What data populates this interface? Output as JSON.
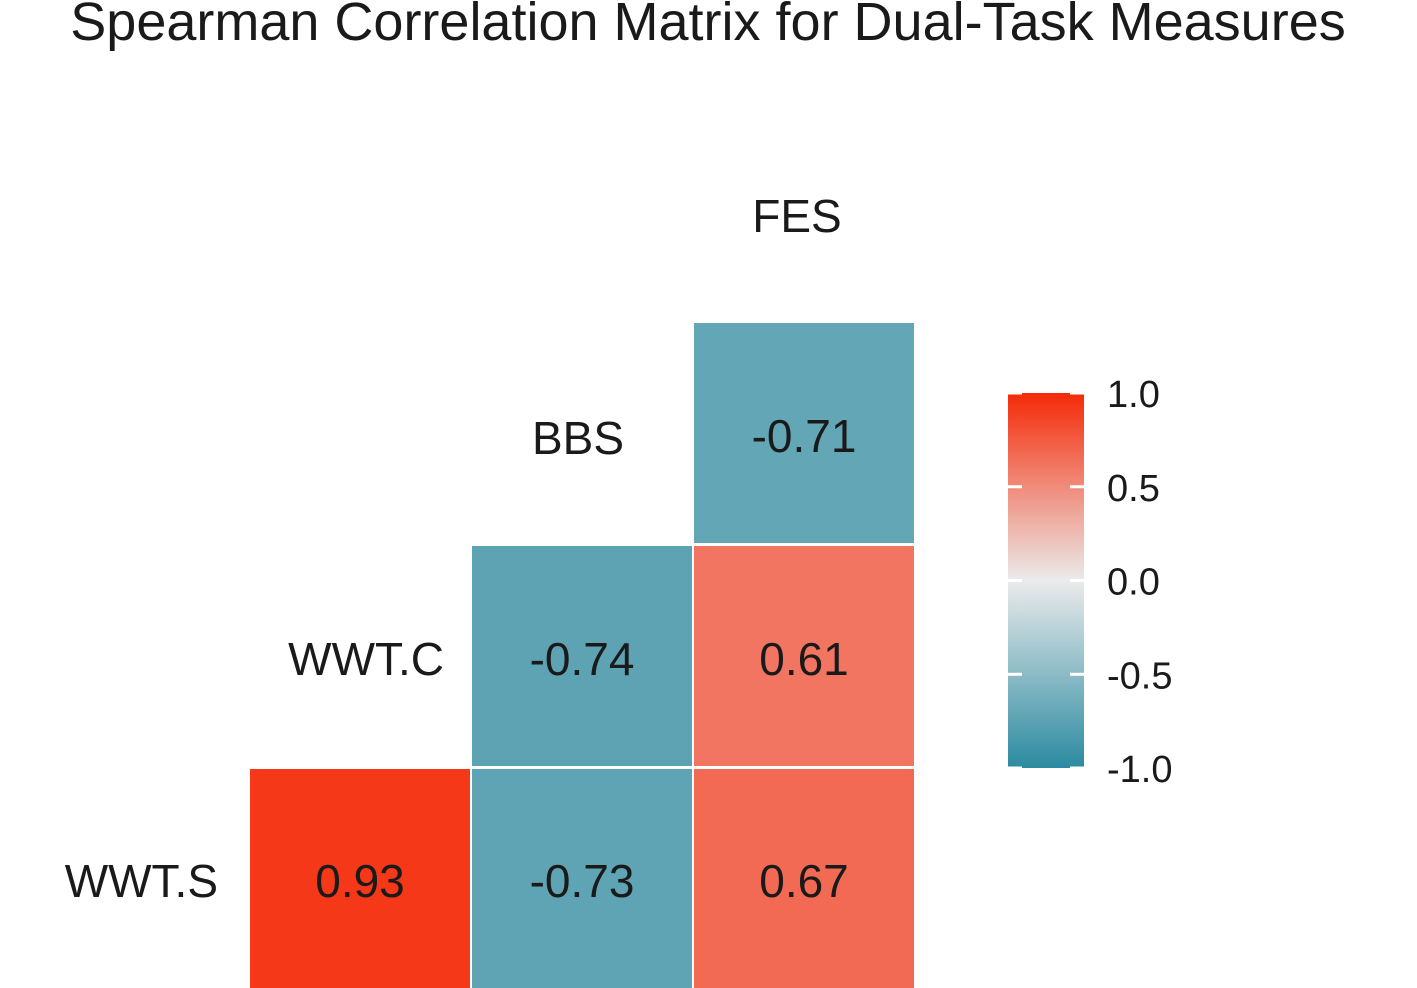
{
  "chart_data": {
    "type": "heatmap",
    "title": "Spearman Correlation Matrix for Dual-Task Measures",
    "variables": [
      "WWT.S",
      "WWT.C",
      "BBS",
      "FES"
    ],
    "cells": [
      {
        "row": "WWT.C",
        "col": "WWT.S",
        "value": 0.93
      },
      {
        "row": "BBS",
        "col": "WWT.S",
        "value": -0.73
      },
      {
        "row": "BBS",
        "col": "WWT.C",
        "value": -0.74
      },
      {
        "row": "FES",
        "col": "WWT.S",
        "value": 0.67
      },
      {
        "row": "FES",
        "col": "WWT.C",
        "value": 0.61
      },
      {
        "row": "FES",
        "col": "BBS",
        "value": -0.71
      }
    ],
    "value_labels": [
      "0.93",
      "-0.73",
      "-0.74",
      "0.67",
      "0.61",
      "-0.71"
    ],
    "legend": {
      "position": "right",
      "range": [
        -1.0,
        1.0
      ],
      "ticks": [
        "1.0",
        "0.5",
        "0.0",
        "-0.5",
        "-1.0"
      ],
      "tick_values": [
        1.0,
        0.5,
        0.0,
        -0.5,
        -1.0
      ]
    },
    "colors": {
      "low": "#2b8aa0",
      "mid": "#ebebeb",
      "high": "#f52a08"
    }
  }
}
